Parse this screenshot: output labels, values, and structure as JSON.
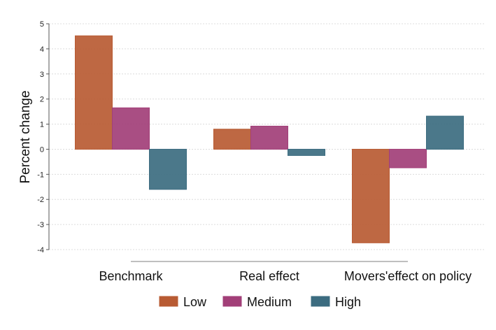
{
  "chart_data": {
    "type": "bar",
    "title": "",
    "xlabel": "",
    "ylabel": "Percent change",
    "ylim": [
      -4,
      5
    ],
    "yticks": [
      -4,
      -3,
      -2,
      -1,
      0,
      1,
      2,
      3,
      4,
      5
    ],
    "categories": [
      "Benchmark",
      "Real effect",
      "Movers'effect on policy"
    ],
    "series": [
      {
        "name": "Low",
        "color": "#B85B33",
        "values": [
          4.52,
          0.8,
          -3.73
        ]
      },
      {
        "name": "Medium",
        "color": "#A23F78",
        "values": [
          1.65,
          0.92,
          -0.74
        ]
      },
      {
        "name": "High",
        "color": "#3C6C80",
        "values": [
          -1.6,
          -0.25,
          1.32
        ]
      }
    ],
    "grid": true,
    "legend_position": "bottom"
  }
}
